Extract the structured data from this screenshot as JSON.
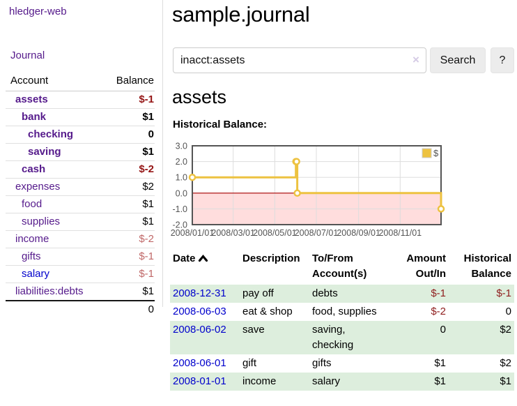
{
  "colors": {
    "purple": "#551a8b",
    "blue": "#0000cc",
    "negStrong": "#941414",
    "negSoft": "#c06868",
    "tableNeg": "#8f1d1d",
    "rowGreen": "#ddeedd",
    "btnBg": "#ececec",
    "gold": "#edc240",
    "goldDark": "#c9a32a",
    "pink": "#ffdddd",
    "zeroRed": "#aa0000",
    "chartBorder": "#545454",
    "gridGray": "#dddddd",
    "tickText": "#545454"
  },
  "sidebar": {
    "app_title": "hledger-web",
    "nav_journal": "Journal",
    "col_account": "Account",
    "col_balance": "Balance",
    "accounts": [
      {
        "name": "assets",
        "depth": 1,
        "bold": true,
        "balance": "$-1",
        "balance_style": "neg-strong",
        "link": "purple"
      },
      {
        "name": "bank",
        "depth": 2,
        "bold": true,
        "balance": "$1",
        "balance_style": "pos",
        "link": "purple"
      },
      {
        "name": "checking",
        "depth": 3,
        "bold": true,
        "balance": "0",
        "balance_style": "pos",
        "link": "purple"
      },
      {
        "name": "saving",
        "depth": 3,
        "bold": true,
        "balance": "$1",
        "balance_style": "pos",
        "link": "purple"
      },
      {
        "name": "cash",
        "depth": 2,
        "bold": true,
        "balance": "$-2",
        "balance_style": "neg-strong",
        "link": "purple"
      },
      {
        "name": "expenses",
        "depth": 1,
        "bold": false,
        "balance": "$2",
        "balance_style": "pos",
        "link": "purple"
      },
      {
        "name": "food",
        "depth": 2,
        "bold": false,
        "balance": "$1",
        "balance_style": "pos",
        "link": "purple"
      },
      {
        "name": "supplies",
        "depth": 2,
        "bold": false,
        "balance": "$1",
        "balance_style": "pos",
        "link": "purple"
      },
      {
        "name": "income",
        "depth": 1,
        "bold": false,
        "balance": "$-2",
        "balance_style": "neg-soft",
        "link": "purple"
      },
      {
        "name": "gifts",
        "depth": 2,
        "bold": false,
        "balance": "$-1",
        "balance_style": "neg-soft",
        "link": "purple"
      },
      {
        "name": "salary",
        "depth": 2,
        "bold": false,
        "balance": "$-1",
        "balance_style": "neg-soft",
        "link": "blue"
      },
      {
        "name": "liabilities:debts",
        "depth": 1,
        "bold": false,
        "balance": "$1",
        "balance_style": "pos",
        "link": "purple"
      }
    ],
    "total": "0"
  },
  "header": {
    "title": "sample.journal"
  },
  "search": {
    "value": "inacct:assets",
    "clear_icon": "×",
    "button_label": "Search",
    "help_label": "?"
  },
  "account_page": {
    "heading": "assets",
    "chart_title": "Historical Balance:"
  },
  "chart_data": {
    "type": "line",
    "step": true,
    "title": "Historical Balance",
    "legend": [
      {
        "label": "$",
        "color": "#edc240"
      }
    ],
    "legend_position": "top-right",
    "grid": true,
    "series": [
      {
        "name": "$",
        "x": [
          "2008-01-01",
          "2008-06-01",
          "2008-06-02",
          "2008-06-03",
          "2008-12-31"
        ],
        "y": [
          1,
          2,
          2,
          0,
          -1
        ]
      }
    ],
    "xlim": [
      "2008-01-01",
      "2008-12-31"
    ],
    "ylim": [
      -2,
      3
    ],
    "yticks": [
      "3.0",
      "2.0",
      "1.0",
      "0.0",
      "-1.0",
      "-2.0"
    ],
    "xticks": [
      {
        "label": "2008/01/01",
        "date": "2008-01-01"
      },
      {
        "label": "2008/03/01",
        "date": "2008-03-01"
      },
      {
        "label": "2008/05/01",
        "date": "2008-05-01"
      },
      {
        "label": "2008/07/01",
        "date": "2008-07-01"
      },
      {
        "label": "2008/09/01",
        "date": "2008-09-01"
      },
      {
        "label": "2008/11/01",
        "date": "2008-11-01"
      }
    ]
  },
  "register": {
    "headers": {
      "date": "Date",
      "description": "Description",
      "tofrom": "To/From Account(s)",
      "amount": "Amount Out/In",
      "historical": "Historical Balance"
    },
    "rows": [
      {
        "date": "2008-12-31",
        "description": "pay off",
        "accounts": "debts",
        "amount": "$-1",
        "amount_neg": true,
        "balance": "$-1",
        "balance_neg": true
      },
      {
        "date": "2008-06-03",
        "description": "eat & shop",
        "accounts": "food, supplies",
        "amount": "$-2",
        "amount_neg": true,
        "balance": "0",
        "balance_neg": false
      },
      {
        "date": "2008-06-02",
        "description": "save",
        "accounts": "saving, checking",
        "amount": "0",
        "amount_neg": false,
        "balance": "$2",
        "balance_neg": false
      },
      {
        "date": "2008-06-01",
        "description": "gift",
        "accounts": "gifts",
        "amount": "$1",
        "amount_neg": false,
        "balance": "$2",
        "balance_neg": false
      },
      {
        "date": "2008-01-01",
        "description": "income",
        "accounts": "salary",
        "amount": "$1",
        "amount_neg": false,
        "balance": "$1",
        "balance_neg": false
      }
    ]
  }
}
